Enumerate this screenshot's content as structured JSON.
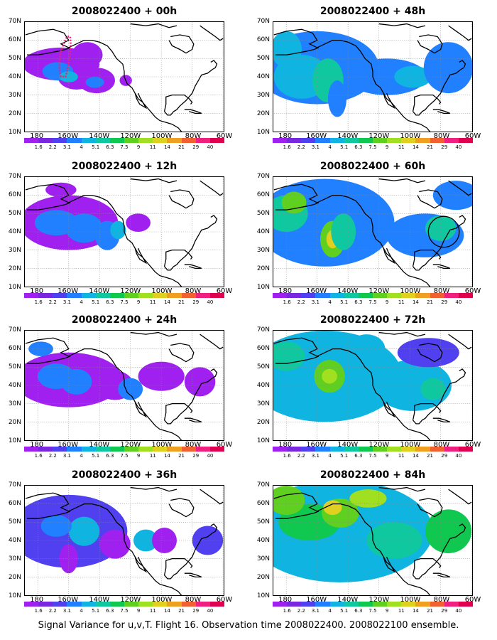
{
  "panels": [
    {
      "title": "2008022400 + 00h",
      "annotation": "dotted-oval"
    },
    {
      "title": "2008022400 + 48h",
      "annotation": ""
    },
    {
      "title": "2008022400 + 12h",
      "annotation": ""
    },
    {
      "title": "2008022400 + 60h",
      "annotation": "circle"
    },
    {
      "title": "2008022400 + 24h",
      "annotation": ""
    },
    {
      "title": "2008022400 + 72h",
      "annotation": ""
    },
    {
      "title": "2008022400 + 36h",
      "annotation": ""
    },
    {
      "title": "2008022400 + 84h",
      "annotation": ""
    }
  ],
  "y_ticks": [
    "70N",
    "60N",
    "50N",
    "40N",
    "30N",
    "20N",
    "10N"
  ],
  "x_ticks": [
    "180",
    "160W",
    "140W",
    "120W",
    "100W",
    "80W",
    "60W"
  ],
  "colorbar": {
    "labels": [
      "1.6",
      "2.2",
      "3.1",
      "4",
      "5.1",
      "6.3",
      "7.5",
      "9",
      "11",
      "14",
      "21",
      "29",
      "40"
    ],
    "colors": [
      "#a020f0",
      "#7a28e0",
      "#5040f0",
      "#2080ff",
      "#10b4e0",
      "#10c8a0",
      "#10c850",
      "#60d020",
      "#a0e020",
      "#e0d020",
      "#f0a020",
      "#f06030",
      "#f02080",
      "#e00050"
    ]
  },
  "caption": "Signal Variance for u,v,T. Flight 16. Observation time 2008022400. 2008022100 ensemble."
}
